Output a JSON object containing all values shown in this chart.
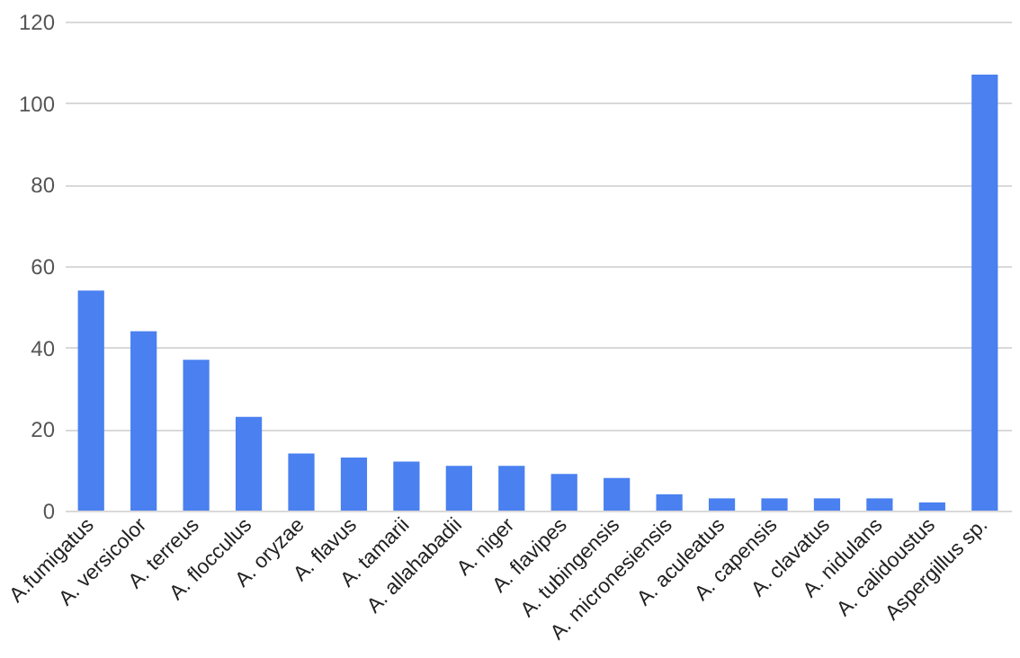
{
  "chart_data": {
    "type": "bar",
    "categories": [
      "A.fumigatus",
      "A. versicolor",
      "A. terreus",
      "A. flocculus",
      "A. oryzae",
      "A. flavus",
      "A. tamarii",
      "A. allahabadii",
      "A. niger",
      "A. flavipes",
      "A. tubingensis",
      "A. micronesiensis",
      "A. aculeatus",
      "A. capensis",
      "A. clavatus",
      "A. nidulans",
      "A. calidoustus",
      "Aspergillus sp."
    ],
    "values": [
      54,
      44,
      37,
      23,
      14,
      13,
      12,
      11,
      11,
      9,
      8,
      4,
      3,
      3,
      3,
      3,
      2,
      107
    ],
    "color": "#4a80f0",
    "ylim": [
      0,
      120
    ],
    "yticks": [
      0,
      20,
      40,
      60,
      80,
      100,
      120
    ],
    "grid": "y"
  }
}
